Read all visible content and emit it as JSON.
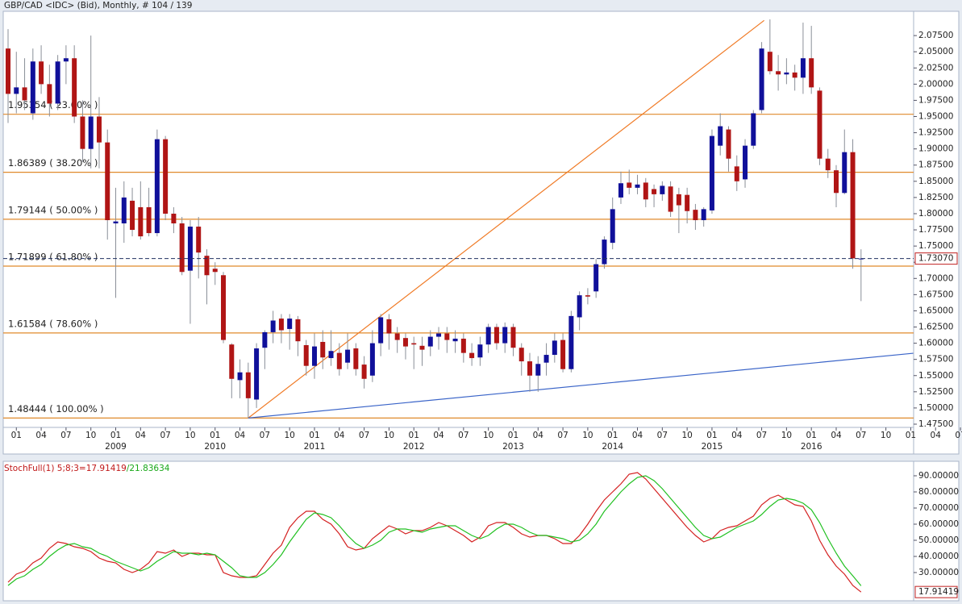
{
  "chart_data": [
    {
      "type": "candlestick",
      "title": "GBP/CAD <IDC> (Bid), Monthly, # 104 / 139",
      "categories": [
        null,
        "01",
        null,
        null,
        "04",
        null,
        null,
        "07",
        null,
        null,
        "10",
        null,
        null,
        "01",
        null,
        null,
        "04",
        null,
        null,
        "07",
        null,
        null,
        "10",
        null,
        null,
        "01",
        null,
        null,
        "04",
        null,
        null,
        "07",
        null,
        null,
        "10",
        null,
        null,
        "01",
        null,
        null,
        "04",
        null,
        null,
        "07",
        null,
        null,
        "10",
        null,
        null,
        "01",
        null,
        null,
        "04",
        null,
        null,
        "07",
        null,
        null,
        "10",
        null,
        null,
        "01",
        null,
        null,
        "04",
        null,
        null,
        "07",
        null,
        null,
        "10",
        null,
        null,
        "01",
        null,
        null,
        "04",
        null,
        null,
        "07",
        null,
        null,
        "10",
        null,
        null,
        "01",
        null,
        null,
        "04",
        null,
        null,
        "07",
        null,
        null,
        "10",
        null,
        null,
        "01",
        null,
        null,
        "04",
        null,
        null,
        "07",
        null,
        null,
        "10",
        null,
        null,
        "01",
        null,
        null,
        "04",
        null,
        null,
        "07",
        null,
        null,
        "10"
      ],
      "year_labels": [
        null,
        null,
        null,
        null,
        null,
        null,
        null,
        null,
        null,
        null,
        null,
        null,
        null,
        "2009",
        null,
        null,
        null,
        null,
        null,
        null,
        null,
        null,
        null,
        null,
        null,
        "2010",
        null,
        null,
        null,
        null,
        null,
        null,
        null,
        null,
        null,
        null,
        null,
        "2011",
        null,
        null,
        null,
        null,
        null,
        null,
        null,
        null,
        null,
        null,
        null,
        "2012",
        null,
        null,
        null,
        null,
        null,
        null,
        null,
        null,
        null,
        null,
        null,
        "2013",
        null,
        null,
        null,
        null,
        null,
        null,
        null,
        null,
        null,
        null,
        null,
        "2014",
        null,
        null,
        null,
        null,
        null,
        null,
        null,
        null,
        null,
        null,
        null,
        "2015",
        null,
        null,
        null,
        null,
        null,
        null,
        null,
        null,
        null,
        null,
        null,
        "2016",
        null,
        null,
        null,
        null,
        null,
        null,
        null,
        null,
        null
      ],
      "candles": [
        [
          2.055,
          2.085,
          1.94,
          1.985
        ],
        [
          1.985,
          2.05,
          1.955,
          1.995
        ],
        [
          1.995,
          2.04,
          1.96,
          1.975
        ],
        [
          1.955,
          2.055,
          1.945,
          2.035
        ],
        [
          2.035,
          2.06,
          1.985,
          2.0
        ],
        [
          2.0,
          2.03,
          1.95,
          1.97
        ],
        [
          1.97,
          2.045,
          1.96,
          2.035
        ],
        [
          2.035,
          2.06,
          2.0,
          2.04
        ],
        [
          2.04,
          2.06,
          1.94,
          1.95
        ],
        [
          1.95,
          1.975,
          1.88,
          1.9
        ],
        [
          1.9,
          2.075,
          1.87,
          1.95
        ],
        [
          1.95,
          1.98,
          1.87,
          1.91
        ],
        [
          1.91,
          1.93,
          1.76,
          1.79
        ],
        [
          1.785,
          1.84,
          1.67,
          1.788
        ],
        [
          1.785,
          1.85,
          1.755,
          1.825
        ],
        [
          1.82,
          1.84,
          1.765,
          1.775
        ],
        [
          1.81,
          1.85,
          1.76,
          1.765
        ],
        [
          1.81,
          1.84,
          1.765,
          1.77
        ],
        [
          1.77,
          1.93,
          1.765,
          1.915
        ],
        [
          1.915,
          1.92,
          1.79,
          1.8
        ],
        [
          1.8,
          1.81,
          1.77,
          1.785
        ],
        [
          1.785,
          1.795,
          1.705,
          1.71
        ],
        [
          1.712,
          1.79,
          1.63,
          1.78
        ],
        [
          1.78,
          1.795,
          1.7,
          1.74
        ],
        [
          1.735,
          1.745,
          1.66,
          1.705
        ],
        [
          1.715,
          1.725,
          1.69,
          1.71
        ],
        [
          1.705,
          1.71,
          1.6,
          1.605
        ],
        [
          1.598,
          1.6,
          1.515,
          1.545
        ],
        [
          1.543,
          1.575,
          1.515,
          1.555
        ],
        [
          1.555,
          1.57,
          1.48444,
          1.515
        ],
        [
          1.513,
          1.6,
          1.5,
          1.592
        ],
        [
          1.593,
          1.62,
          1.56,
          1.617
        ],
        [
          1.617,
          1.65,
          1.6,
          1.635
        ],
        [
          1.638,
          1.645,
          1.6,
          1.62
        ],
        [
          1.622,
          1.645,
          1.59,
          1.638
        ],
        [
          1.637,
          1.642,
          1.58,
          1.603
        ],
        [
          1.597,
          1.605,
          1.55,
          1.565
        ],
        [
          1.565,
          1.615,
          1.545,
          1.595
        ],
        [
          1.602,
          1.62,
          1.56,
          1.578
        ],
        [
          1.577,
          1.62,
          1.565,
          1.588
        ],
        [
          1.585,
          1.6,
          1.55,
          1.56
        ],
        [
          1.57,
          1.615,
          1.56,
          1.59
        ],
        [
          1.592,
          1.6,
          1.55,
          1.56
        ],
        [
          1.567,
          1.58,
          1.53,
          1.545
        ],
        [
          1.55,
          1.62,
          1.54,
          1.6
        ],
        [
          1.6,
          1.645,
          1.58,
          1.64
        ],
        [
          1.637,
          1.645,
          1.59,
          1.615
        ],
        [
          1.615,
          1.625,
          1.585,
          1.605
        ],
        [
          1.608,
          1.615,
          1.575,
          1.595
        ],
        [
          1.6,
          1.61,
          1.56,
          1.598
        ],
        [
          1.596,
          1.61,
          1.565,
          1.59
        ],
        [
          1.595,
          1.62,
          1.58,
          1.61
        ],
        [
          1.61,
          1.625,
          1.59,
          1.615
        ],
        [
          1.615,
          1.625,
          1.585,
          1.605
        ],
        [
          1.603,
          1.62,
          1.585,
          1.607
        ],
        [
          1.607,
          1.615,
          1.57,
          1.585
        ],
        [
          1.585,
          1.6,
          1.565,
          1.577
        ],
        [
          1.578,
          1.61,
          1.565,
          1.598
        ],
        [
          1.598,
          1.63,
          1.585,
          1.625
        ],
        [
          1.625,
          1.63,
          1.59,
          1.6
        ],
        [
          1.6,
          1.632,
          1.585,
          1.625
        ],
        [
          1.625,
          1.63,
          1.58,
          1.593
        ],
        [
          1.593,
          1.6,
          1.55,
          1.572
        ],
        [
          1.572,
          1.585,
          1.525,
          1.55
        ],
        [
          1.55,
          1.58,
          1.525,
          1.568
        ],
        [
          1.57,
          1.6,
          1.55,
          1.582
        ],
        [
          1.582,
          1.615,
          1.57,
          1.604
        ],
        [
          1.605,
          1.615,
          1.555,
          1.56
        ],
        [
          1.56,
          1.65,
          1.555,
          1.642
        ],
        [
          1.64,
          1.68,
          1.62,
          1.674
        ],
        [
          1.674,
          1.685,
          1.66,
          1.672
        ],
        [
          1.68,
          1.73,
          1.67,
          1.722
        ],
        [
          1.722,
          1.765,
          1.715,
          1.76
        ],
        [
          1.755,
          1.825,
          1.745,
          1.807
        ],
        [
          1.825,
          1.865,
          1.815,
          1.847
        ],
        [
          1.848,
          1.868,
          1.83,
          1.84
        ],
        [
          1.84,
          1.86,
          1.83,
          1.845
        ],
        [
          1.848,
          1.855,
          1.81,
          1.822
        ],
        [
          1.838,
          1.845,
          1.81,
          1.83
        ],
        [
          1.83,
          1.85,
          1.82,
          1.843
        ],
        [
          1.842,
          1.85,
          1.795,
          1.803
        ],
        [
          1.83,
          1.84,
          1.77,
          1.813
        ],
        [
          1.829,
          1.84,
          1.785,
          1.804
        ],
        [
          1.806,
          1.815,
          1.775,
          1.79
        ],
        [
          1.79,
          1.81,
          1.78,
          1.807
        ],
        [
          1.805,
          1.93,
          1.8,
          1.92
        ],
        [
          1.905,
          1.955,
          1.89,
          1.935
        ],
        [
          1.93,
          1.935,
          1.865,
          1.885
        ],
        [
          1.873,
          1.89,
          1.835,
          1.85
        ],
        [
          1.853,
          1.915,
          1.84,
          1.905
        ],
        [
          1.905,
          1.96,
          1.9,
          1.955
        ],
        [
          1.96,
          2.065,
          1.955,
          2.055
        ],
        [
          2.05,
          2.1,
          2.015,
          2.02
        ],
        [
          2.02,
          2.045,
          1.99,
          2.015
        ],
        [
          2.015,
          2.04,
          2.0,
          2.018
        ],
        [
          2.018,
          2.03,
          1.99,
          2.01
        ],
        [
          2.01,
          2.095,
          1.985,
          2.04
        ],
        [
          2.04,
          2.09,
          1.985,
          1.995
        ],
        [
          1.99,
          1.995,
          1.875,
          1.885
        ],
        [
          1.885,
          1.9,
          1.855,
          1.867
        ],
        [
          1.867,
          1.875,
          1.81,
          1.832
        ],
        [
          1.832,
          1.93,
          1.83,
          1.895
        ],
        [
          1.895,
          1.915,
          1.715,
          1.731
        ],
        [
          1.7297,
          1.745,
          1.665,
          1.7307
        ],
        null,
        null,
        null
      ],
      "last_price_label": "1.73070",
      "up_color": "#10109a",
      "down_color": "#b01515",
      "ylim": [
        1.47,
        2.1125
      ],
      "yticks": [
        {
          "value": 1.475,
          "label": "1.47500"
        },
        {
          "value": 1.5,
          "label": "1.50000"
        },
        {
          "value": 1.525,
          "label": "1.52500"
        },
        {
          "value": 1.55,
          "label": "1.55000"
        },
        {
          "value": 1.575,
          "label": "1.57500"
        },
        {
          "value": 1.6,
          "label": "1.60000"
        },
        {
          "value": 1.625,
          "label": "1.62500"
        },
        {
          "value": 1.65,
          "label": "1.65000"
        },
        {
          "value": 1.675,
          "label": "1.67500"
        },
        {
          "value": 1.7,
          "label": "1.70000"
        },
        {
          "value": 1.725,
          "label": "1.72500"
        },
        {
          "value": 1.75,
          "label": "1.75000"
        },
        {
          "value": 1.775,
          "label": "1.77500"
        },
        {
          "value": 1.8,
          "label": "1.80000"
        },
        {
          "value": 1.825,
          "label": "1.82500"
        },
        {
          "value": 1.85,
          "label": "1.85000"
        },
        {
          "value": 1.875,
          "label": "1.87500"
        },
        {
          "value": 1.9,
          "label": "1.90000"
        },
        {
          "value": 1.925,
          "label": "1.92500"
        },
        {
          "value": 1.95,
          "label": "1.95000"
        },
        {
          "value": 1.975,
          "label": "1.97500"
        },
        {
          "value": 2.0,
          "label": "2.00000"
        },
        {
          "value": 2.025,
          "label": "2.02500"
        },
        {
          "value": 2.05,
          "label": "2.05000"
        },
        {
          "value": 2.075,
          "label": "2.07500"
        }
      ],
      "fib_color": "#e08a2b",
      "fib_levels": [
        {
          "value": 1.95354,
          "label": "1.95354 ( 23.60% )"
        },
        {
          "value": 1.86389,
          "label": "1.86389 ( 38.20% )"
        },
        {
          "value": 1.79144,
          "label": "1.79144 ( 50.00% )"
        },
        {
          "value": 1.71899,
          "label": "1.71899 ( 61.80% )"
        },
        {
          "value": 1.61584,
          "label": "1.61584 ( 78.60% )"
        },
        {
          "value": 1.48444,
          "label": "1.48444 ( 100.00% )"
        }
      ],
      "trendlines": [
        {
          "color": "#f07a25",
          "points": [
            [
              29,
              1.48444
            ],
            [
              91.3,
              2.09844
            ]
          ]
        },
        {
          "color": "#3a64c8",
          "points": [
            [
              29,
              1.48444
            ],
            [
              109.3,
              1.5845
            ]
          ]
        }
      ]
    },
    {
      "type": "line",
      "label_prefix": "StochFull(1) 5;8;3=",
      "label_separator": "/",
      "series": [
        {
          "color": "#d42020",
          "values": [
            24,
            29,
            31,
            36,
            39,
            45,
            49,
            48,
            46,
            45,
            43,
            39,
            37,
            36,
            32,
            30,
            32,
            36,
            43,
            42,
            44,
            40,
            42,
            42,
            41,
            41,
            30,
            28,
            27,
            27,
            28,
            35,
            42,
            47,
            58,
            64,
            68,
            68,
            63,
            60,
            54,
            46,
            44,
            45,
            51,
            55,
            59,
            57,
            54,
            56,
            56,
            58,
            61,
            59,
            56,
            53,
            49,
            52,
            59,
            61,
            61,
            58,
            54,
            52,
            53,
            53,
            51,
            48,
            48,
            53,
            60,
            68,
            75,
            80,
            85,
            91,
            92,
            88,
            82,
            76,
            70,
            64,
            58,
            53,
            49,
            51,
            56,
            58,
            59,
            62,
            65,
            72,
            76,
            78,
            75,
            72,
            71,
            62,
            50,
            41,
            34,
            29,
            22,
            17.91419,
            null,
            null,
            null
          ]
        },
        {
          "color": "#20c020",
          "values": [
            22,
            26,
            28,
            32,
            35,
            40,
            44,
            47,
            48,
            46,
            45,
            42,
            40,
            37,
            35,
            33,
            31,
            33,
            37,
            40,
            43,
            42,
            42,
            41,
            42,
            41,
            37,
            33,
            28,
            27,
            27,
            30,
            35,
            41,
            49,
            56,
            63,
            67,
            66,
            64,
            59,
            53,
            48,
            45,
            47,
            50,
            55,
            57,
            57,
            56,
            55,
            57,
            58,
            59,
            59,
            56,
            53,
            51,
            53,
            57,
            60,
            60,
            58,
            55,
            53,
            53,
            52,
            51,
            49,
            50,
            54,
            60,
            68,
            74,
            80,
            85,
            89,
            90,
            87,
            82,
            76,
            70,
            64,
            58,
            53,
            51,
            52,
            55,
            58,
            60,
            62,
            66,
            71,
            75,
            76,
            75,
            73,
            69,
            61,
            51,
            42,
            34,
            28,
            21.83634,
            null,
            null,
            null
          ]
        }
      ],
      "ylim": [
        12.5,
        97.5
      ],
      "yticks": [
        {
          "value": 30,
          "label": "30.00000"
        },
        {
          "value": 40,
          "label": "40.00000"
        },
        {
          "value": 50,
          "label": "50.00000"
        },
        {
          "value": 60,
          "label": "60.00000"
        },
        {
          "value": 70,
          "label": "70.00000"
        },
        {
          "value": 80,
          "label": "80.00000"
        },
        {
          "value": 90,
          "label": "90.00000"
        }
      ]
    }
  ]
}
